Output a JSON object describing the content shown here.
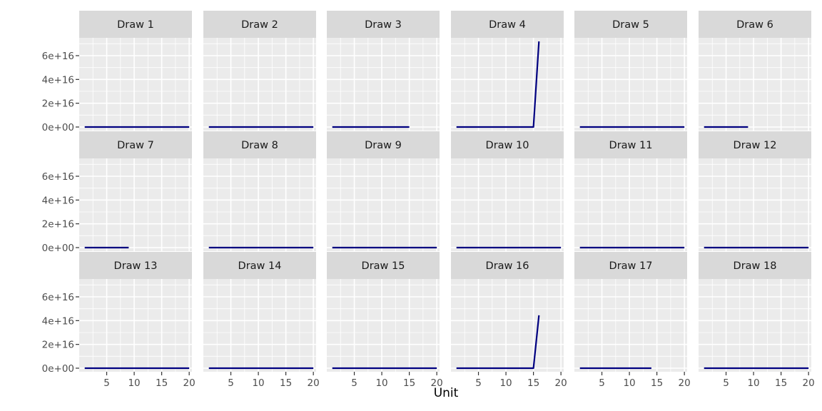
{
  "chart_data": {
    "type": "line",
    "layout": "facet_wrap",
    "ncol": 6,
    "xlabel": "Unit",
    "ylabel": "",
    "xlim": [
      0,
      20.5
    ],
    "ylim": [
      -3000000000000000,
      75000000000000000
    ],
    "x_ticks": [
      5,
      10,
      15,
      20
    ],
    "x_tick_labels": [
      "5",
      "10",
      "15",
      "20"
    ],
    "y_ticks": [
      0,
      20000000000000000,
      40000000000000000,
      60000000000000000
    ],
    "y_tick_labels": [
      "0e+00",
      "2e+16",
      "4e+16",
      "6e+16"
    ],
    "grid": true,
    "line_color": "#000080",
    "panel_background": "#ebebeb",
    "strip_background": "#d9d9d9",
    "panels": [
      {
        "label": "Draw 1",
        "x": [
          1,
          20
        ],
        "y": [
          0,
          0
        ]
      },
      {
        "label": "Draw 2",
        "x": [
          1,
          20
        ],
        "y": [
          0,
          0
        ]
      },
      {
        "label": "Draw 3",
        "x": [
          1,
          15
        ],
        "y": [
          0,
          0
        ]
      },
      {
        "label": "Draw 4",
        "x": [
          1,
          15,
          16
        ],
        "y": [
          0,
          0,
          72000000000000000
        ]
      },
      {
        "label": "Draw 5",
        "x": [
          1,
          20
        ],
        "y": [
          0,
          0
        ]
      },
      {
        "label": "Draw 6",
        "x": [
          1,
          9
        ],
        "y": [
          0,
          0
        ]
      },
      {
        "label": "Draw 7",
        "x": [
          1,
          9
        ],
        "y": [
          0,
          0
        ]
      },
      {
        "label": "Draw 8",
        "x": [
          1,
          20
        ],
        "y": [
          0,
          0
        ]
      },
      {
        "label": "Draw 9",
        "x": [
          1,
          20
        ],
        "y": [
          0,
          0
        ]
      },
      {
        "label": "Draw 10",
        "x": [
          1,
          20
        ],
        "y": [
          0,
          0
        ]
      },
      {
        "label": "Draw 11",
        "x": [
          1,
          20
        ],
        "y": [
          0,
          0
        ]
      },
      {
        "label": "Draw 12",
        "x": [
          1,
          20
        ],
        "y": [
          0,
          0
        ]
      },
      {
        "label": "Draw 13",
        "x": [
          1,
          20
        ],
        "y": [
          0,
          0
        ]
      },
      {
        "label": "Draw 14",
        "x": [
          1,
          20
        ],
        "y": [
          0,
          0
        ]
      },
      {
        "label": "Draw 15",
        "x": [
          1,
          20
        ],
        "y": [
          0,
          0
        ]
      },
      {
        "label": "Draw 16",
        "x": [
          1,
          15,
          16
        ],
        "y": [
          0,
          0,
          44500000000000000
        ]
      },
      {
        "label": "Draw 17",
        "x": [
          1,
          14
        ],
        "y": [
          0,
          0
        ]
      },
      {
        "label": "Draw 18",
        "x": [
          1,
          20
        ],
        "y": [
          0,
          0
        ]
      }
    ]
  }
}
